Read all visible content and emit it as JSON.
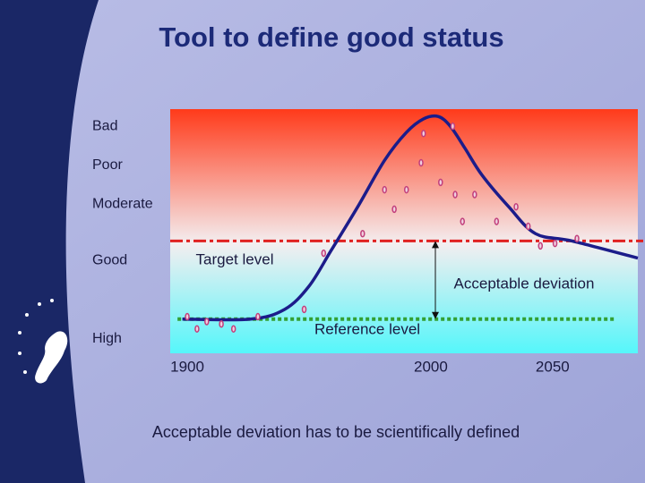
{
  "chart_data": {
    "type": "line",
    "title": "Tool to define good status",
    "xlim": [
      1893,
      2085
    ],
    "xticks": [
      1900,
      2000,
      2050
    ],
    "ylim": [
      0,
      100
    ],
    "yticks": [
      {
        "value": 93,
        "label": "Bad"
      },
      {
        "value": 77,
        "label": "Poor"
      },
      {
        "value": 61,
        "label": "Moderate"
      },
      {
        "value": 38,
        "label": "Good"
      },
      {
        "value": 6,
        "label": "High"
      }
    ],
    "series": [
      {
        "style": "line",
        "color": "#1c1c8a",
        "x": [
          1898,
          1926,
          1940,
          1950,
          1959,
          1970,
          1981,
          1990,
          1997,
          2003,
          2008,
          2014,
          2021,
          2032,
          2043,
          2058,
          2085
        ],
        "values": [
          14,
          14,
          18,
          27.5,
          42,
          60,
          79,
          90.5,
          96,
          97,
          93,
          84,
          73,
          60,
          49,
          46,
          39
        ]
      },
      {
        "style": "markers",
        "color": "#c2407c",
        "x": [
          1900,
          1904,
          1908,
          1914,
          1919,
          1929,
          1948,
          1956,
          1972,
          1981,
          1985,
          1990,
          1996,
          1997,
          2004,
          2009,
          2010,
          2013,
          2018,
          2027,
          2035,
          2040,
          2045,
          2051,
          2060
        ],
        "values": [
          15,
          10,
          13,
          12,
          10,
          15,
          18,
          41,
          49,
          67,
          59,
          67,
          78,
          90,
          70,
          93,
          65,
          54,
          65,
          54,
          60,
          52,
          44,
          45,
          47
        ]
      }
    ],
    "target_level": {
      "label": "Target level",
      "value": 46,
      "color": "#e02020"
    },
    "reference_level": {
      "label": "Reference level",
      "value": 14,
      "color": "#33a033",
      "xrange": [
        1896,
        2076
      ]
    },
    "acceptable_deviation": "Acceptable deviation",
    "caption": "Acceptable deviation has to be scientifically defined"
  }
}
